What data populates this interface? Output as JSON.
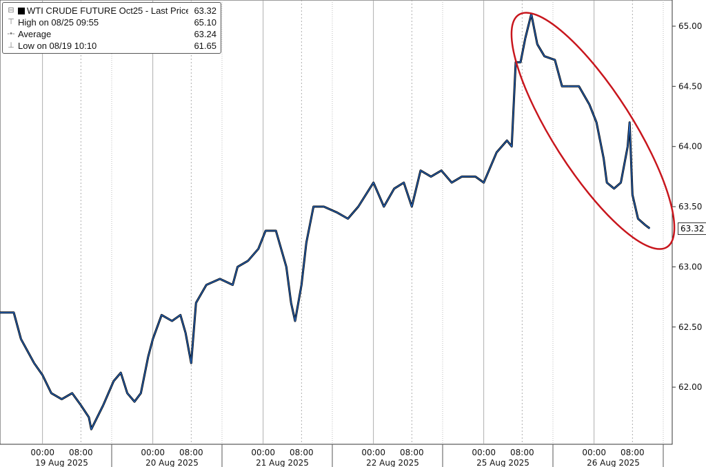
{
  "chart_data": {
    "type": "line",
    "title": "",
    "legend": {
      "placement": "top-left",
      "entries": [
        {
          "label": "WTI CRUDE FUTURE Oct25 - Last Price",
          "value": "63.32",
          "icon": "black-square"
        },
        {
          "label": "High on 08/25 09:55",
          "value": "65.10",
          "icon": "high-marker"
        },
        {
          "label": "Average",
          "value": "63.24",
          "icon": "average-marker"
        },
        {
          "label": "Low on 08/19 10:10",
          "value": "61.65",
          "icon": "low-marker"
        }
      ]
    },
    "last_price_label": "63.32",
    "ylim": [
      61.55,
      65.2
    ],
    "yticks": [
      "62.00",
      "62.50",
      "63.00",
      "63.50",
      "64.00",
      "64.50",
      "65.00"
    ],
    "x_time_labels": [
      "00:00",
      "08:00"
    ],
    "x_date_labels": [
      "19 Aug 2025",
      "20 Aug 2025",
      "21 Aug 2025",
      "22 Aug 2025",
      "25 Aug 2025",
      "26 Aug 2025"
    ],
    "grid": "vertical",
    "colors": {
      "line": "#2a6bc4",
      "line_shadow": "#000000",
      "annotation": "#c8161d"
    },
    "annotation": "red ellipse around decline from 25 Aug high to 26 Aug",
    "points": [
      [
        "2025-08-18 15:00",
        62.62
      ],
      [
        "2025-08-18 18:00",
        62.62
      ],
      [
        "2025-08-18 19:30",
        62.4
      ],
      [
        "2025-08-18 22:15",
        62.2
      ],
      [
        "2025-08-19 00:00",
        62.1
      ],
      [
        "2025-08-19 01:50",
        61.95
      ],
      [
        "2025-08-19 04:00",
        61.9
      ],
      [
        "2025-08-19 06:10",
        61.95
      ],
      [
        "2025-08-19 08:00",
        61.85
      ],
      [
        "2025-08-19 09:40",
        61.75
      ],
      [
        "2025-08-19 10:10",
        61.65
      ],
      [
        "2025-08-19 12:40",
        61.85
      ],
      [
        "2025-08-19 14:50",
        62.05
      ],
      [
        "2025-08-19 16:20",
        62.12
      ],
      [
        "2025-08-19 18:40",
        61.95
      ],
      [
        "2025-08-19 20:10",
        61.88
      ],
      [
        "2025-08-19 21:30",
        61.95
      ],
      [
        "2025-08-19 23:00",
        62.25
      ],
      [
        "2025-08-20 00:00",
        62.4
      ],
      [
        "2025-08-20 01:50",
        62.6
      ],
      [
        "2025-08-20 04:00",
        62.55
      ],
      [
        "2025-08-20 05:45",
        62.6
      ],
      [
        "2025-08-20 06:50",
        62.45
      ],
      [
        "2025-08-20 08:00",
        62.2
      ],
      [
        "2025-08-20 09:00",
        62.7
      ],
      [
        "2025-08-20 11:10",
        62.85
      ],
      [
        "2025-08-20 14:00",
        62.9
      ],
      [
        "2025-08-20 16:40",
        62.85
      ],
      [
        "2025-08-20 18:40",
        63.0
      ],
      [
        "2025-08-20 20:50",
        63.05
      ],
      [
        "2025-08-20 23:00",
        63.15
      ],
      [
        "2025-08-21 00:30",
        63.3
      ],
      [
        "2025-08-21 02:40",
        63.3
      ],
      [
        "2025-08-21 04:50",
        63.0
      ],
      [
        "2025-08-21 05:50",
        62.7
      ],
      [
        "2025-08-21 06:40",
        62.55
      ],
      [
        "2025-08-21 08:00",
        62.85
      ],
      [
        "2025-08-21 09:00",
        63.2
      ],
      [
        "2025-08-21 10:30",
        63.5
      ],
      [
        "2025-08-21 12:40",
        63.5
      ],
      [
        "2025-08-21 15:30",
        63.45
      ],
      [
        "2025-08-21 18:40",
        63.4
      ],
      [
        "2025-08-21 20:50",
        63.5
      ],
      [
        "2025-08-22 00:00",
        63.7
      ],
      [
        "2025-08-22 02:10",
        63.5
      ],
      [
        "2025-08-22 04:20",
        63.65
      ],
      [
        "2025-08-22 06:20",
        63.7
      ],
      [
        "2025-08-22 08:00",
        63.5
      ],
      [
        "2025-08-22 09:50",
        63.8
      ],
      [
        "2025-08-22 12:00",
        63.75
      ],
      [
        "2025-08-22 14:10",
        63.8
      ],
      [
        "2025-08-22 16:20",
        63.7
      ],
      [
        "2025-08-24 19:25",
        63.75
      ],
      [
        "2025-08-24 22:15",
        63.75
      ],
      [
        "2025-08-25 00:00",
        63.7
      ],
      [
        "2025-08-25 02:40",
        63.95
      ],
      [
        "2025-08-25 04:50",
        64.05
      ],
      [
        "2025-08-25 05:50",
        64.0
      ],
      [
        "2025-08-25 06:40",
        64.7
      ],
      [
        "2025-08-25 07:40",
        64.7
      ],
      [
        "2025-08-25 08:40",
        64.9
      ],
      [
        "2025-08-25 09:55",
        65.1
      ],
      [
        "2025-08-25 11:10",
        64.85
      ],
      [
        "2025-08-25 12:40",
        64.75
      ],
      [
        "2025-08-25 14:50",
        64.72
      ],
      [
        "2025-08-25 16:20",
        64.5
      ],
      [
        "2025-08-25 18:40",
        64.5
      ],
      [
        "2025-08-25 20:50",
        64.5
      ],
      [
        "2025-08-25 23:00",
        64.35
      ],
      [
        "2025-08-26 00:30",
        64.2
      ],
      [
        "2025-08-26 02:00",
        63.9
      ],
      [
        "2025-08-26 02:40",
        63.7
      ],
      [
        "2025-08-26 04:10",
        63.65
      ],
      [
        "2025-08-26 05:35",
        63.7
      ],
      [
        "2025-08-26 07:00",
        64.0
      ],
      [
        "2025-08-26 07:25",
        64.2
      ],
      [
        "2025-08-26 08:00",
        63.6
      ],
      [
        "2025-08-26 09:10",
        63.4
      ],
      [
        "2025-08-26 10:35",
        63.35
      ],
      [
        "2025-08-26 11:35",
        63.32
      ]
    ]
  }
}
